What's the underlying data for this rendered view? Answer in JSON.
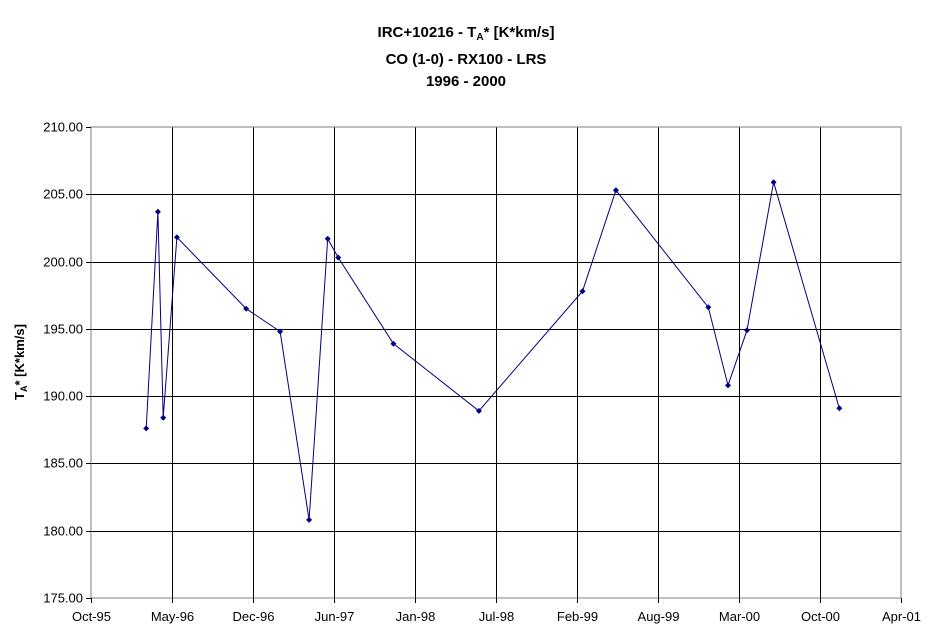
{
  "chart_data": {
    "type": "line",
    "title": {
      "line1_prefix": "IRC+10216 - T",
      "line1_sub": "A",
      "line1_suffix": "* [K*km/s]",
      "line2": "CO (1-0) - RX100 - LRS",
      "line3": "1996 - 2000"
    },
    "ylabel": {
      "prefix": "T",
      "sub": "A",
      "suffix": "* [K*km/s]"
    },
    "xlabel": "",
    "x_ticks": [
      "Oct-95",
      "May-96",
      "Dec-96",
      "Jun-97",
      "Jan-98",
      "Jul-98",
      "Feb-99",
      "Aug-99",
      "Mar-00",
      "Oct-00",
      "Apr-01"
    ],
    "y_ticks": [
      "175.00",
      "180.00",
      "185.00",
      "190.00",
      "195.00",
      "200.00",
      "205.00",
      "210.00"
    ],
    "ylim": [
      175,
      210
    ],
    "xlim": [
      "1995-10-01",
      "2001-04-01"
    ],
    "grid": true,
    "series": [
      {
        "color": "#000080",
        "marker": "diamond",
        "points": [
          {
            "x": "1996-02-15",
            "y": 187.6
          },
          {
            "x": "1996-03-15",
            "y": 203.7
          },
          {
            "x": "1996-03-28",
            "y": 188.4
          },
          {
            "x": "1996-05-01",
            "y": 201.8
          },
          {
            "x": "1996-10-20",
            "y": 196.5
          },
          {
            "x": "1997-01-12",
            "y": 194.8
          },
          {
            "x": "1997-03-25",
            "y": 180.8
          },
          {
            "x": "1997-05-10",
            "y": 201.7
          },
          {
            "x": "1997-06-05",
            "y": 200.3
          },
          {
            "x": "1997-10-20",
            "y": 193.9
          },
          {
            "x": "1998-05-20",
            "y": 188.9
          },
          {
            "x": "1999-02-01",
            "y": 197.8
          },
          {
            "x": "1999-04-25",
            "y": 205.3
          },
          {
            "x": "1999-12-10",
            "y": 196.6
          },
          {
            "x": "2000-01-28",
            "y": 190.8
          },
          {
            "x": "2000-03-15",
            "y": 194.9
          },
          {
            "x": "2000-05-20",
            "y": 205.9
          },
          {
            "x": "2000-10-30",
            "y": 189.1
          }
        ]
      }
    ]
  }
}
